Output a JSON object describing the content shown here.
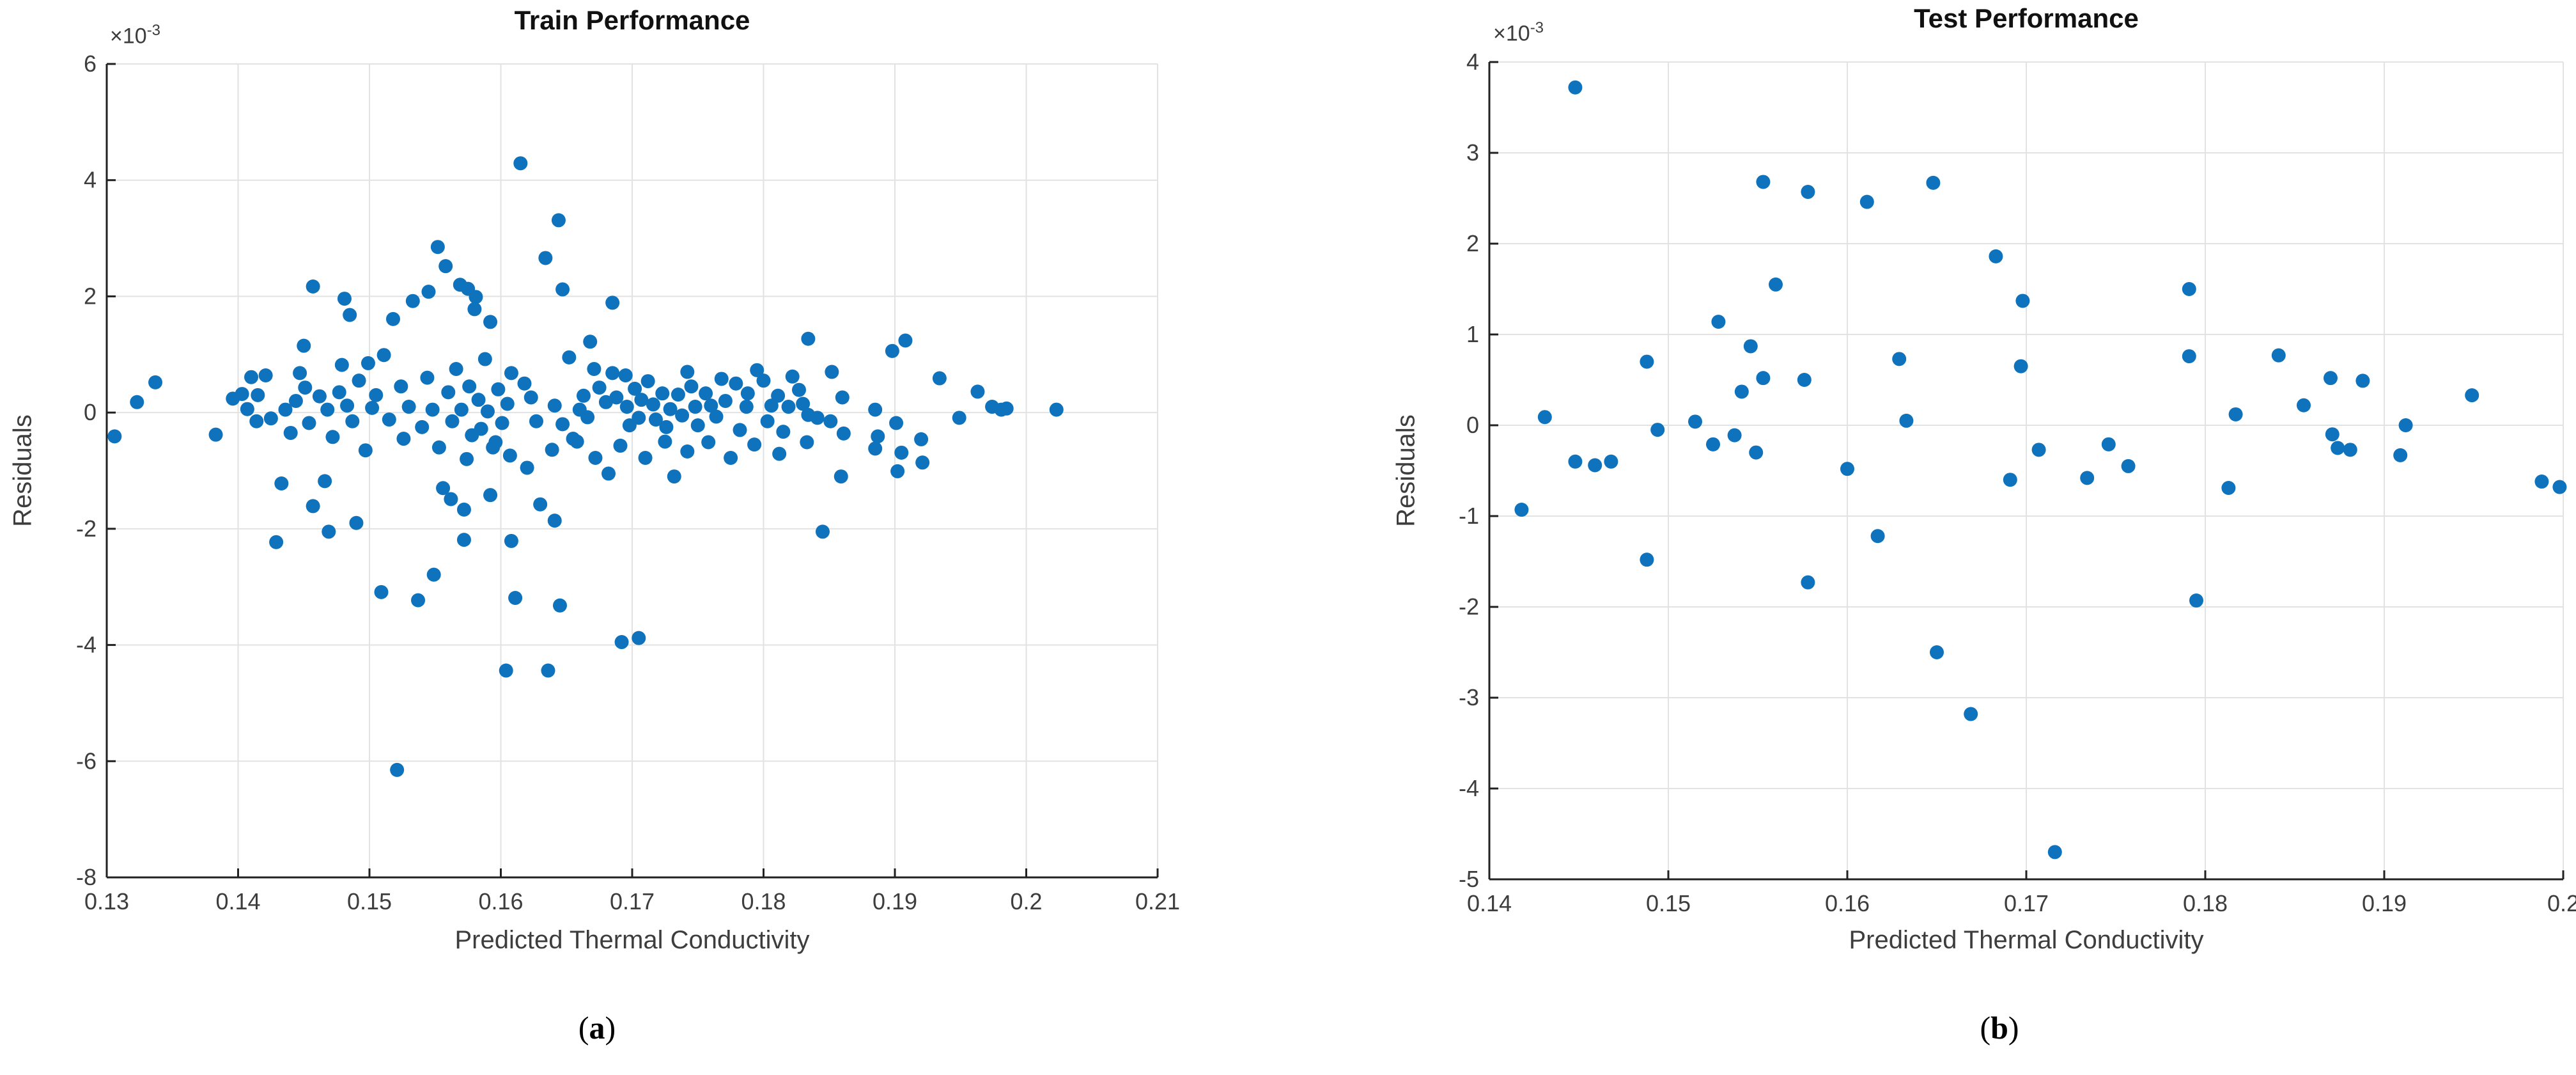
{
  "figure": {
    "marker_color": "#0e72bd",
    "grid_color": "#e2e2e2",
    "spine_color": "#212121",
    "tick_label_color": "#3d3d3d",
    "background": "#ffffff",
    "captions": [
      {
        "pre": "(",
        "letter": "a",
        "post": ")"
      },
      {
        "pre": "(",
        "letter": "b",
        "post": ")"
      }
    ]
  },
  "chart_data": [
    {
      "type": "scatter",
      "title": "Train Performance",
      "xlabel": "Predicted Thermal Conductivity",
      "ylabel": "Residuals",
      "y_exponent": {
        "base": "×10",
        "sup": "-3"
      },
      "xlim": [
        0.13,
        0.21
      ],
      "ylim": [
        -8,
        6
      ],
      "y_unit": "1e-3",
      "grid": true,
      "legend": null,
      "xtick_values": [
        0.13,
        0.14,
        0.15,
        0.16,
        0.17,
        0.18,
        0.19,
        0.2,
        0.21
      ],
      "xtick_labels": [
        "0.13",
        "0.14",
        "0.15",
        "0.16",
        "0.17",
        "0.18",
        "0.19",
        "0.2",
        "0.21"
      ],
      "ytick_values": [
        -8,
        -6,
        -4,
        -2,
        0,
        2,
        4,
        6
      ],
      "ytick_labels": [
        "-8",
        "-6",
        "-4",
        "-2",
        "0",
        "2",
        "4",
        "6"
      ],
      "points": [
        [
          0.1306,
          -0.41
        ],
        [
          0.1323,
          0.18
        ],
        [
          0.1337,
          0.52
        ],
        [
          0.1383,
          -0.38
        ],
        [
          0.1396,
          0.24
        ],
        [
          0.1403,
          0.32
        ],
        [
          0.1407,
          0.06
        ],
        [
          0.141,
          0.61
        ],
        [
          0.1414,
          -0.15
        ],
        [
          0.1421,
          0.64
        ],
        [
          0.1415,
          0.3
        ],
        [
          0.1425,
          -0.1
        ],
        [
          0.1429,
          -2.23
        ],
        [
          0.1433,
          -1.22
        ],
        [
          0.1436,
          0.05
        ],
        [
          0.144,
          -0.35
        ],
        [
          0.1444,
          0.2
        ],
        [
          0.1447,
          0.68
        ],
        [
          0.145,
          1.15
        ],
        [
          0.1451,
          0.43
        ],
        [
          0.1454,
          -0.18
        ],
        [
          0.1457,
          2.17
        ],
        [
          0.1457,
          -1.61
        ],
        [
          0.1462,
          0.28
        ],
        [
          0.1466,
          -1.18
        ],
        [
          0.1468,
          0.05
        ],
        [
          0.1469,
          -2.05
        ],
        [
          0.1472,
          -0.42
        ],
        [
          0.1477,
          0.35
        ],
        [
          0.1479,
          0.82
        ],
        [
          0.1481,
          1.96
        ],
        [
          0.1483,
          0.12
        ],
        [
          0.1485,
          1.68
        ],
        [
          0.1487,
          -0.15
        ],
        [
          0.149,
          -1.9
        ],
        [
          0.1492,
          0.55
        ],
        [
          0.1497,
          -0.65
        ],
        [
          0.1499,
          0.85
        ],
        [
          0.1502,
          0.08
        ],
        [
          0.1505,
          0.3
        ],
        [
          0.1509,
          -3.09
        ],
        [
          0.1511,
          0.99
        ],
        [
          0.1515,
          -0.12
        ],
        [
          0.1518,
          1.61
        ],
        [
          0.1521,
          -6.15
        ],
        [
          0.1524,
          0.45
        ],
        [
          0.1526,
          -0.45
        ],
        [
          0.153,
          0.1
        ],
        [
          0.1533,
          1.92
        ],
        [
          0.1537,
          -3.23
        ],
        [
          0.154,
          -0.25
        ],
        [
          0.1544,
          0.6
        ],
        [
          0.1545,
          2.08
        ],
        [
          0.1548,
          0.05
        ],
        [
          0.1549,
          -2.79
        ],
        [
          0.1552,
          2.85
        ],
        [
          0.1553,
          -0.6
        ],
        [
          0.1556,
          -1.3
        ],
        [
          0.1558,
          2.52
        ],
        [
          0.156,
          0.35
        ],
        [
          0.1562,
          -1.49
        ],
        [
          0.1563,
          -0.15
        ],
        [
          0.1566,
          0.75
        ],
        [
          0.1569,
          2.2
        ],
        [
          0.157,
          0.05
        ],
        [
          0.1572,
          -1.67
        ],
        [
          0.1572,
          -2.19
        ],
        [
          0.1574,
          -0.8
        ],
        [
          0.1575,
          2.13
        ],
        [
          0.1576,
          0.45
        ],
        [
          0.1578,
          -0.39
        ],
        [
          0.158,
          1.78
        ],
        [
          0.1581,
          1.99
        ],
        [
          0.1583,
          0.22
        ],
        [
          0.1585,
          -0.28
        ],
        [
          0.1588,
          0.92
        ],
        [
          0.159,
          0.02
        ],
        [
          0.1592,
          1.56
        ],
        [
          0.1592,
          -1.42
        ],
        [
          0.1594,
          -0.6
        ],
        [
          0.1596,
          -0.51
        ],
        [
          0.1598,
          0.4
        ],
        [
          0.1601,
          -0.18
        ],
        [
          0.1604,
          -4.44
        ],
        [
          0.1605,
          0.15
        ],
        [
          0.1607,
          -0.74
        ],
        [
          0.1608,
          0.68
        ],
        [
          0.1608,
          -2.21
        ],
        [
          0.1611,
          -3.19
        ],
        [
          0.1615,
          4.29
        ],
        [
          0.1618,
          0.5
        ],
        [
          0.162,
          -0.95
        ],
        [
          0.1623,
          0.26
        ],
        [
          0.1627,
          -0.15
        ],
        [
          0.163,
          -1.58
        ],
        [
          0.1634,
          2.66
        ],
        [
          0.1636,
          -4.44
        ],
        [
          0.1639,
          -0.64
        ],
        [
          0.1641,
          0.12
        ],
        [
          0.1641,
          -1.86
        ],
        [
          0.1644,
          3.31
        ],
        [
          0.1645,
          -3.32
        ],
        [
          0.1647,
          2.12
        ],
        [
          0.1647,
          -0.2
        ],
        [
          0.1652,
          0.95
        ],
        [
          0.1655,
          -0.45
        ],
        [
          0.1658,
          -0.5
        ],
        [
          0.166,
          0.05
        ],
        [
          0.1663,
          0.29
        ],
        [
          0.1666,
          -0.08
        ],
        [
          0.1668,
          1.22
        ],
        [
          0.1671,
          0.75
        ],
        [
          0.1672,
          -0.78
        ],
        [
          0.1675,
          0.43
        ],
        [
          0.168,
          0.18
        ],
        [
          0.1682,
          -1.05
        ],
        [
          0.1685,
          1.89
        ],
        [
          0.1685,
          0.68
        ],
        [
          0.1688,
          0.26
        ],
        [
          0.1691,
          -0.57
        ],
        [
          0.1692,
          -3.95
        ],
        [
          0.1695,
          0.64
        ],
        [
          0.1696,
          0.1
        ],
        [
          0.1698,
          -0.22
        ],
        [
          0.1702,
          0.41
        ],
        [
          0.1705,
          -0.09
        ],
        [
          0.1705,
          -3.88
        ],
        [
          0.1707,
          0.22
        ],
        [
          0.171,
          -0.78
        ],
        [
          0.1712,
          0.54
        ],
        [
          0.1716,
          0.14
        ],
        [
          0.1718,
          -0.12
        ],
        [
          0.1723,
          0.33
        ],
        [
          0.1725,
          -0.5
        ],
        [
          0.1726,
          -0.25
        ],
        [
          0.1729,
          0.06
        ],
        [
          0.1732,
          -1.1
        ],
        [
          0.1735,
          0.31
        ],
        [
          0.1738,
          -0.05
        ],
        [
          0.1742,
          0.7
        ],
        [
          0.1742,
          -0.67
        ],
        [
          0.1745,
          0.45
        ],
        [
          0.1748,
          0.1
        ],
        [
          0.175,
          -0.22
        ],
        [
          0.1756,
          0.33
        ],
        [
          0.1758,
          -0.51
        ],
        [
          0.176,
          0.12
        ],
        [
          0.1764,
          -0.07
        ],
        [
          0.1768,
          0.58
        ],
        [
          0.1771,
          0.2
        ],
        [
          0.1775,
          -0.78
        ],
        [
          0.1779,
          0.5
        ],
        [
          0.1782,
          -0.3
        ],
        [
          0.1787,
          0.1
        ],
        [
          0.1788,
          0.33
        ],
        [
          0.1793,
          -0.55
        ],
        [
          0.1795,
          0.73
        ],
        [
          0.18,
          0.55
        ],
        [
          0.1803,
          -0.15
        ],
        [
          0.1806,
          0.12
        ],
        [
          0.1811,
          0.29
        ],
        [
          0.1812,
          -0.71
        ],
        [
          0.1815,
          -0.33
        ],
        [
          0.1819,
          0.1
        ],
        [
          0.1822,
          0.62
        ],
        [
          0.1827,
          0.39
        ],
        [
          0.183,
          0.15
        ],
        [
          0.1833,
          -0.51
        ],
        [
          0.1834,
          -0.04
        ],
        [
          0.1834,
          1.27
        ],
        [
          0.1841,
          -0.09
        ],
        [
          0.1845,
          -2.05
        ],
        [
          0.1851,
          -0.15
        ],
        [
          0.1852,
          0.7
        ],
        [
          0.1859,
          -1.1
        ],
        [
          0.186,
          0.26
        ],
        [
          0.1861,
          -0.36
        ],
        [
          0.1885,
          0.05
        ],
        [
          0.1885,
          -0.62
        ],
        [
          0.1887,
          -0.41
        ],
        [
          0.1898,
          1.06
        ],
        [
          0.1901,
          -0.18
        ],
        [
          0.1902,
          -1.01
        ],
        [
          0.1905,
          -0.69
        ],
        [
          0.1908,
          1.24
        ],
        [
          0.192,
          -0.46
        ],
        [
          0.1921,
          -0.86
        ],
        [
          0.1934,
          0.59
        ],
        [
          0.1949,
          -0.09
        ],
        [
          0.1963,
          0.36
        ],
        [
          0.1974,
          0.1
        ],
        [
          0.1981,
          0.05
        ],
        [
          0.1985,
          0.07
        ],
        [
          0.2023,
          0.05
        ]
      ]
    },
    {
      "type": "scatter",
      "title": "Test Performance",
      "xlabel": "Predicted Thermal Conductivity",
      "ylabel": "Residuals",
      "y_exponent": {
        "base": "×10",
        "sup": "-3"
      },
      "xlim": [
        0.14,
        0.2
      ],
      "ylim": [
        -5,
        4
      ],
      "y_unit": "1e-3",
      "grid": true,
      "legend": null,
      "xtick_values": [
        0.14,
        0.15,
        0.16,
        0.17,
        0.18,
        0.19,
        0.2
      ],
      "xtick_labels": [
        "0.14",
        "0.15",
        "0.16",
        "0.17",
        "0.18",
        "0.19",
        "0.2"
      ],
      "ytick_values": [
        -5,
        -4,
        -3,
        -2,
        -1,
        0,
        1,
        2,
        3,
        4
      ],
      "ytick_labels": [
        "-5",
        "-4",
        "-3",
        "-2",
        "-1",
        "0",
        "1",
        "2",
        "3",
        "4"
      ],
      "points": [
        [
          0.1418,
          -0.93
        ],
        [
          0.1431,
          0.09
        ],
        [
          0.1448,
          3.72
        ],
        [
          0.1448,
          -0.4
        ],
        [
          0.1459,
          -0.44
        ],
        [
          0.1468,
          -0.4
        ],
        [
          0.1488,
          0.7
        ],
        [
          0.1488,
          -1.48
        ],
        [
          0.1494,
          -0.05
        ],
        [
          0.1515,
          0.04
        ],
        [
          0.1525,
          -0.21
        ],
        [
          0.1528,
          1.14
        ],
        [
          0.1537,
          -0.11
        ],
        [
          0.1541,
          0.37
        ],
        [
          0.1546,
          0.87
        ],
        [
          0.1549,
          -0.3
        ],
        [
          0.1553,
          2.68
        ],
        [
          0.1553,
          0.52
        ],
        [
          0.156,
          1.55
        ],
        [
          0.1576,
          0.5
        ],
        [
          0.1578,
          2.57
        ],
        [
          0.1578,
          -1.73
        ],
        [
          0.16,
          -0.48
        ],
        [
          0.1611,
          2.46
        ],
        [
          0.1617,
          -1.22
        ],
        [
          0.1629,
          0.73
        ],
        [
          0.1633,
          0.05
        ],
        [
          0.1648,
          2.67
        ],
        [
          0.165,
          -2.5
        ],
        [
          0.1669,
          -3.18
        ],
        [
          0.1683,
          1.86
        ],
        [
          0.1691,
          -0.6
        ],
        [
          0.1697,
          0.65
        ],
        [
          0.1698,
          1.37
        ],
        [
          0.1707,
          -0.27
        ],
        [
          0.1716,
          -4.7
        ],
        [
          0.1734,
          -0.58
        ],
        [
          0.1746,
          -0.21
        ],
        [
          0.1757,
          -0.45
        ],
        [
          0.1791,
          1.5
        ],
        [
          0.1791,
          0.76
        ],
        [
          0.1795,
          -1.93
        ],
        [
          0.1813,
          -0.69
        ],
        [
          0.1817,
          0.12
        ],
        [
          0.1841,
          0.77
        ],
        [
          0.1855,
          0.22
        ],
        [
          0.187,
          0.52
        ],
        [
          0.1871,
          -0.1
        ],
        [
          0.1874,
          -0.25
        ],
        [
          0.1881,
          -0.27
        ],
        [
          0.1888,
          0.49
        ],
        [
          0.1909,
          -0.33
        ],
        [
          0.1912,
          0.0
        ],
        [
          0.1949,
          0.33
        ],
        [
          0.1988,
          -0.62
        ],
        [
          0.1998,
          -0.68
        ]
      ]
    }
  ]
}
